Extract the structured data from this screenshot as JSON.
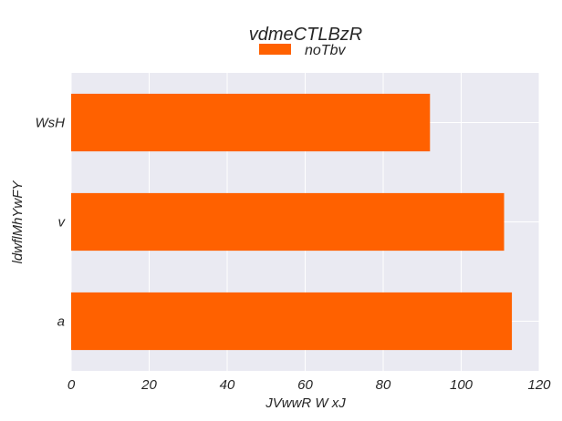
{
  "chart_data": {
    "type": "bar",
    "orientation": "horizontal",
    "title": "vdmeCTLBzR",
    "xlabel": "JVwwR W xJ",
    "ylabel": "ldwflMhYwFY",
    "categories": [
      "WsH",
      "v",
      "a"
    ],
    "series": [
      {
        "name": "noTbv",
        "values": [
          92,
          111,
          113
        ],
        "color": "#ff6100"
      }
    ],
    "xlim": [
      0,
      120
    ],
    "xticks": [
      "0",
      "20",
      "40",
      "60",
      "80",
      "100",
      "120"
    ],
    "grid": true,
    "legend_position": "top-center",
    "background_color": "#eaeaf2"
  }
}
